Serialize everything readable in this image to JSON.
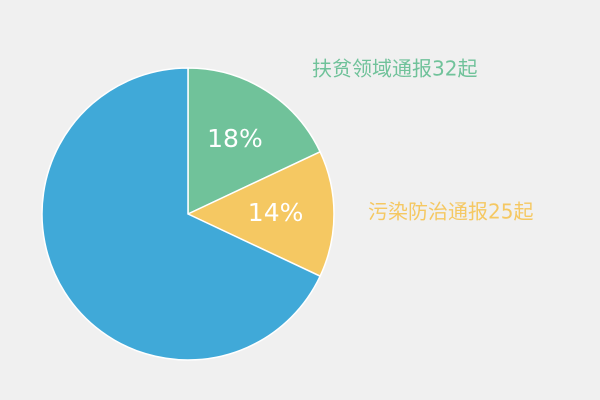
{
  "chart_data": {
    "type": "pie",
    "categories": [
      "扶贫领域通报32起",
      "污染防治通报25起",
      null
    ],
    "values": [
      18,
      14,
      68
    ],
    "value_labels": [
      "18%",
      "14%",
      null
    ],
    "colors": [
      "#70c29a",
      "#f5c862",
      "#40a9d8"
    ]
  }
}
